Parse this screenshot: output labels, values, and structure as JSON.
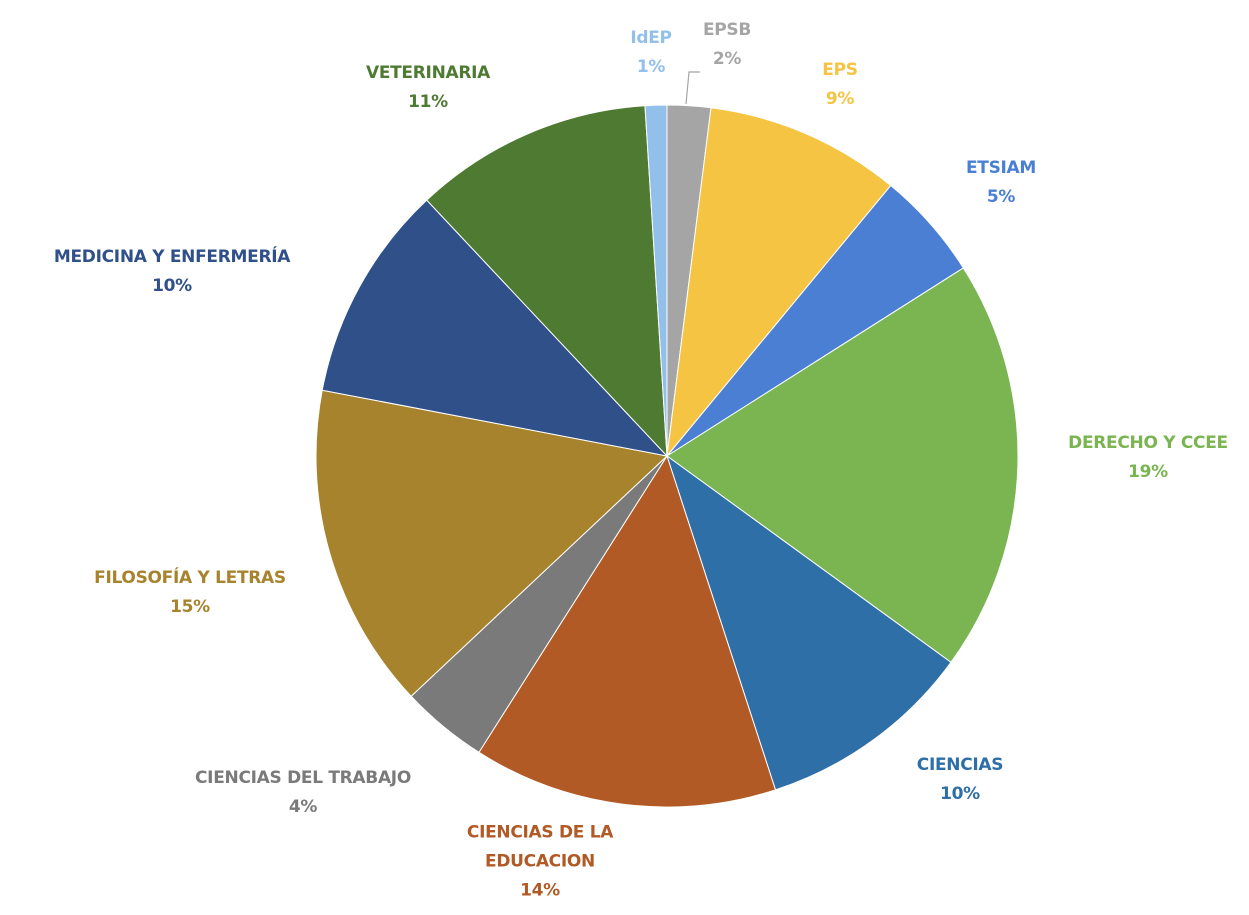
{
  "chart_data": {
    "type": "pie",
    "categories": [
      "EPSB",
      "EPS",
      "ETSIAM",
      "DERECHO Y CCEE",
      "CIENCIAS",
      "CIENCIAS DE LA EDUCACION",
      "CIENCIAS DEL TRABAJO",
      "FILOSOFÍA Y LETRAS",
      "MEDICINA Y ENFERMERÍA",
      "VETERINARIA",
      "IdEP"
    ],
    "values": [
      2,
      9,
      5,
      19,
      10,
      14,
      4,
      15,
      10,
      11,
      1
    ],
    "value_labels": [
      "2%",
      "9%",
      "5%",
      "19%",
      "10%",
      "14%",
      "4%",
      "15%",
      "10%",
      "11%",
      "1%"
    ],
    "colors": [
      "#a5a5a5",
      "#f5c443",
      "#4a7fd4",
      "#7ab552",
      "#2e6fa8",
      "#b25a25",
      "#7a7a7a",
      "#a8832e",
      "#2f5089",
      "#4e7a32",
      "#92c0ea"
    ]
  }
}
